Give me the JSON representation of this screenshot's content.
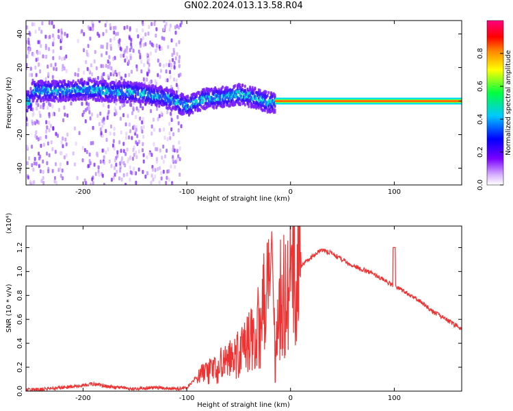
{
  "title": "GN02.2024.013.13.58.R04",
  "chart_data": [
    {
      "type": "heatmap",
      "xlabel": "Height of straight line (km)",
      "ylabel": "Frequency (Hz)",
      "xlim": [
        -255,
        165
      ],
      "ylim": [
        -50,
        48
      ],
      "xticks": [
        -200,
        -100,
        0,
        100
      ],
      "yticks": [
        -40,
        -20,
        0,
        20,
        40
      ],
      "colorbar": {
        "label": "Normalized spectral amplitude",
        "range": [
          0,
          1
        ],
        "ticks": [
          0.0,
          0.2,
          0.4,
          0.6,
          0.8
        ],
        "colormap": [
          "#ffffff",
          "#d9b3ff",
          "#7a00ff",
          "#0000ff",
          "#00c8ff",
          "#00ff40",
          "#ffff00",
          "#ff7f00",
          "#ff0000",
          "#ff0080"
        ]
      },
      "ridge": [
        {
          "x": -250,
          "y": 6
        },
        {
          "x": -220,
          "y": 6
        },
        {
          "x": -200,
          "y": 7
        },
        {
          "x": -180,
          "y": 6
        },
        {
          "x": -150,
          "y": 5
        },
        {
          "x": -120,
          "y": 2
        },
        {
          "x": -100,
          "y": -3
        },
        {
          "x": -85,
          "y": 1
        },
        {
          "x": -70,
          "y": 2
        },
        {
          "x": -50,
          "y": 4
        },
        {
          "x": -35,
          "y": 2
        },
        {
          "x": -20,
          "y": -1
        },
        {
          "x": 0,
          "y": 0
        },
        {
          "x": 165,
          "y": 0
        }
      ]
    },
    {
      "type": "line",
      "xlabel": "Height of straight line (km)",
      "ylabel": "SNR (10 * v/v)",
      "y_multiplier": "(x10⁴)",
      "xlim": [
        -255,
        165
      ],
      "ylim": [
        0,
        1.38
      ],
      "xticks": [
        -200,
        -100,
        0,
        100
      ],
      "yticks": [
        0.0,
        0.2,
        0.4,
        0.6,
        0.8,
        1.0,
        1.2
      ],
      "series": [
        {
          "color": "#ee3333",
          "x": [
            -255,
            -230,
            -200,
            -190,
            -170,
            -150,
            -130,
            -110,
            -100,
            -90,
            -80,
            -70,
            -60,
            -50,
            -40,
            -30,
            -25,
            -20,
            -18,
            -15,
            -10,
            0,
            10,
            20,
            30,
            40,
            60,
            80,
            100,
            120,
            140,
            165
          ],
          "y": [
            0.01,
            0.02,
            0.05,
            0.06,
            0.03,
            0.02,
            0.03,
            0.02,
            0.03,
            0.12,
            0.15,
            0.2,
            0.25,
            0.3,
            0.4,
            0.55,
            0.7,
            0.8,
            1.35,
            0.2,
            0.75,
            0.95,
            1.05,
            1.12,
            1.18,
            1.15,
            1.05,
            0.98,
            0.88,
            0.78,
            0.65,
            0.52
          ]
        }
      ]
    }
  ]
}
